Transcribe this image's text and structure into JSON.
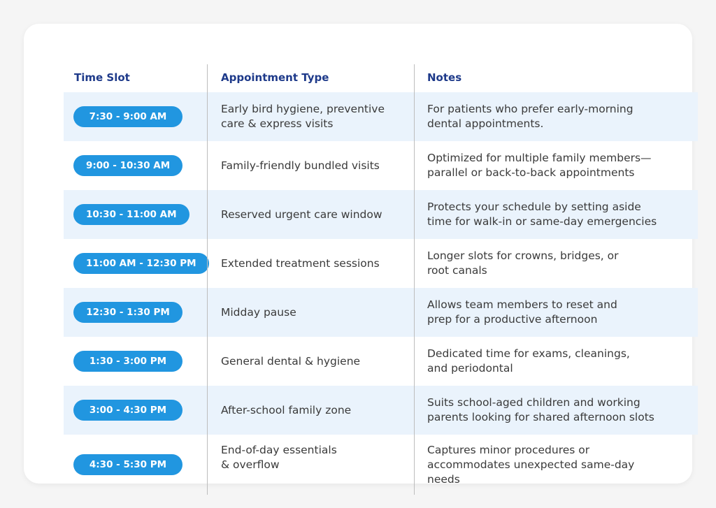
{
  "colors": {
    "header_text": "#1e3a8a",
    "pill_bg": "#2196e0",
    "alt_row_bg": "#eaf3fc",
    "body_text": "#3a3a3a"
  },
  "table": {
    "headers": {
      "time_slot": "Time Slot",
      "appointment_type": "Appointment Type",
      "notes": "Notes"
    },
    "rows": [
      {
        "time": "7:30 - 9:00 AM",
        "type": "Early bird hygiene, preventive\ncare & express visits",
        "notes": "For patients who prefer early-morning\ndental appointments."
      },
      {
        "time": "9:00 - 10:30 AM",
        "type": "Family-friendly bundled visits",
        "notes": "Optimized for multiple family members—\nparallel or back-to-back appointments"
      },
      {
        "time": "10:30 - 11:00 AM",
        "type": "Reserved urgent care window",
        "notes": "Protects your schedule by setting aside\ntime for walk-in or same-day emergencies"
      },
      {
        "time": "11:00 AM - 12:30 PM",
        "type": "Extended treatment sessions",
        "notes": "Longer slots for crowns, bridges, or\nroot canals"
      },
      {
        "time": "12:30 - 1:30 PM",
        "type": "Midday pause",
        "notes": "Allows team members to reset and\nprep for a productive afternoon"
      },
      {
        "time": "1:30 - 3:00 PM",
        "type": "General dental & hygiene",
        "notes": "Dedicated time for exams, cleanings,\nand periodontal"
      },
      {
        "time": "3:00 - 4:30 PM",
        "type": "After-school family zone",
        "notes": "Suits school-aged children and working\nparents looking for shared afternoon slots"
      },
      {
        "time": "4:30 - 5:30 PM",
        "type": "End-of-day essentials\n& overflow",
        "notes": "Captures minor procedures or\naccommodates unexpected same-day\nneeds"
      }
    ]
  }
}
